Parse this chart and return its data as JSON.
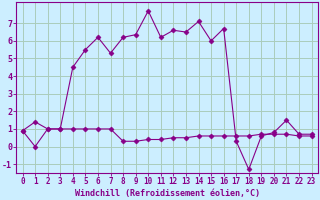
{
  "xlabel": "Windchill (Refroidissement éolien,°C)",
  "background_color": "#cceeff",
  "grid_color": "#aaccbb",
  "line_color": "#880088",
  "xlim": [
    -0.5,
    23.5
  ],
  "ylim": [
    -1.5,
    8.2
  ],
  "xticks": [
    0,
    1,
    2,
    3,
    4,
    5,
    6,
    7,
    8,
    9,
    10,
    11,
    12,
    13,
    14,
    15,
    16,
    17,
    18,
    19,
    20,
    21,
    22,
    23
  ],
  "yticks": [
    -1,
    0,
    1,
    2,
    3,
    4,
    5,
    6,
    7
  ],
  "line1_x": [
    0,
    1,
    2,
    3,
    4,
    5,
    6,
    7,
    8,
    9,
    10,
    11,
    12,
    13,
    14,
    15,
    16,
    17,
    18,
    19,
    20,
    21,
    22,
    23
  ],
  "line1_y": [
    0.9,
    1.4,
    1.0,
    1.0,
    4.5,
    5.5,
    6.2,
    5.3,
    6.2,
    6.35,
    7.7,
    6.2,
    6.6,
    6.5,
    7.1,
    6.0,
    6.7,
    0.3,
    -1.3,
    0.6,
    0.8,
    1.5,
    0.7,
    0.7
  ],
  "line2_x": [
    0,
    1,
    2,
    3,
    4,
    5,
    6,
    7,
    8,
    9,
    10,
    11,
    12,
    13,
    14,
    15,
    16,
    17,
    18,
    19,
    20,
    21,
    22,
    23
  ],
  "line2_y": [
    0.9,
    0.0,
    1.0,
    1.0,
    1.0,
    1.0,
    1.0,
    1.0,
    0.3,
    0.3,
    0.4,
    0.4,
    0.5,
    0.5,
    0.6,
    0.6,
    0.6,
    0.6,
    0.6,
    0.7,
    0.7,
    0.7,
    0.6,
    0.6
  ],
  "tick_fontsize": 5.5,
  "xlabel_fontsize": 6.0
}
